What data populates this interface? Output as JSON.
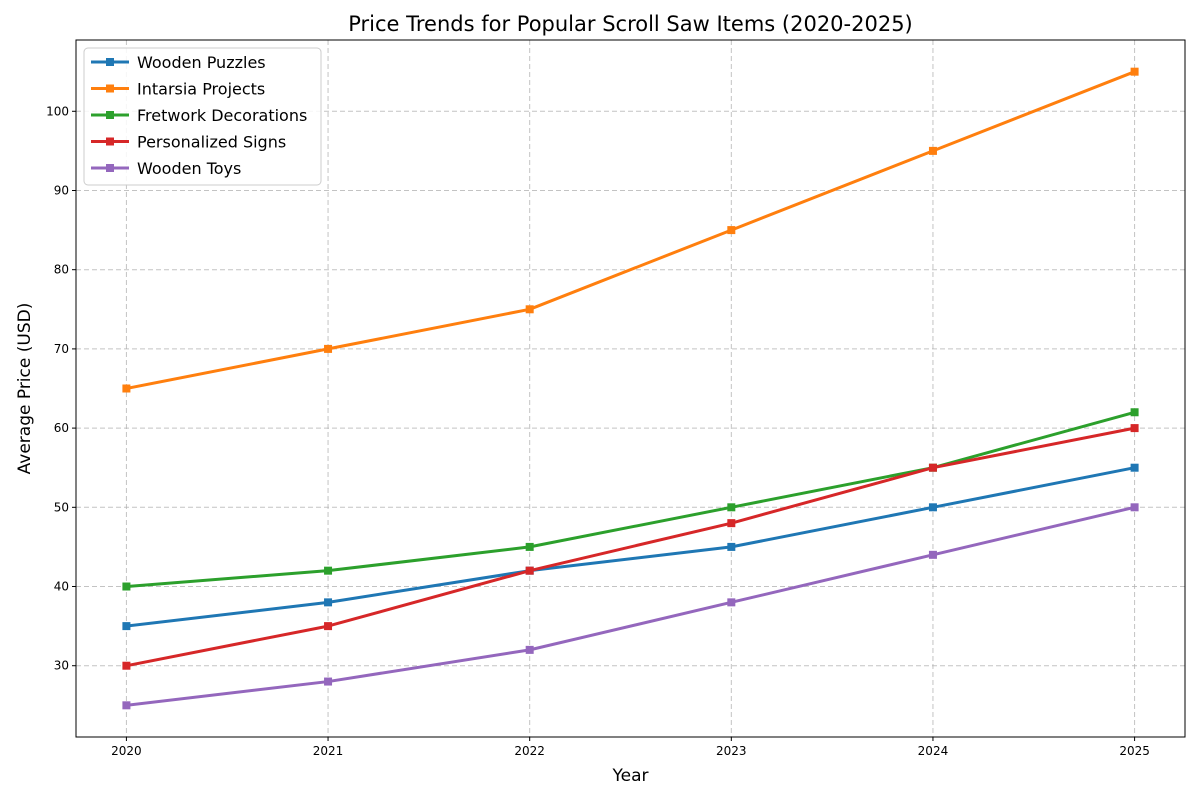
{
  "chart_data": {
    "type": "line",
    "title": "Price Trends for Popular Scroll Saw Items (2020-2025)",
    "xlabel": "Year",
    "ylabel": "Average Price (USD)",
    "x": [
      2020,
      2021,
      2022,
      2023,
      2024,
      2025
    ],
    "x_tick_labels": [
      "2020",
      "2021",
      "2022",
      "2023",
      "2024",
      "2025"
    ],
    "y_ticks": [
      30,
      40,
      50,
      60,
      70,
      80,
      90,
      100
    ],
    "y_tick_labels": [
      "30",
      "40",
      "50",
      "60",
      "70",
      "80",
      "90",
      "100"
    ],
    "xlim": [
      2019.75,
      2025.25
    ],
    "ylim": [
      21,
      109
    ],
    "grid": true,
    "legend_position": "upper-left",
    "marker": "square",
    "series": [
      {
        "name": "Wooden Puzzles",
        "color": "#1f77b4",
        "values": [
          35,
          38,
          42,
          45,
          50,
          55
        ]
      },
      {
        "name": "Intarsia Projects",
        "color": "#ff7f0e",
        "values": [
          65,
          70,
          75,
          85,
          95,
          105
        ]
      },
      {
        "name": "Fretwork Decorations",
        "color": "#2ca02c",
        "values": [
          40,
          42,
          45,
          50,
          55,
          62
        ]
      },
      {
        "name": "Personalized Signs",
        "color": "#d62728",
        "values": [
          30,
          35,
          42,
          48,
          55,
          60
        ]
      },
      {
        "name": "Wooden Toys",
        "color": "#9467bd",
        "values": [
          25,
          28,
          32,
          38,
          44,
          50
        ]
      }
    ]
  }
}
